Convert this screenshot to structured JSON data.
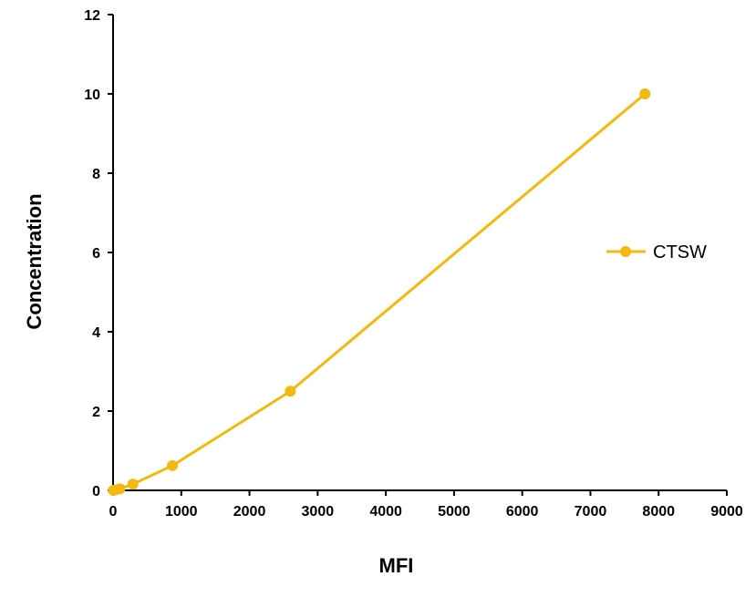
{
  "chart_data": {
    "type": "line",
    "xlabel": "MFI",
    "ylabel": "Concentration",
    "xlim": [
      0,
      9000
    ],
    "ylim": [
      0,
      12
    ],
    "xticks": [
      0,
      1000,
      2000,
      3000,
      4000,
      5000,
      6000,
      7000,
      8000,
      9000
    ],
    "yticks": [
      0,
      2,
      4,
      6,
      8,
      10,
      12
    ],
    "grid": false,
    "legend_position": "right",
    "colors": {
      "series": "#F2B90F"
    },
    "series": [
      {
        "name": "CTSW",
        "x": [
          5,
          35,
          100,
          290,
          870,
          2600,
          7800
        ],
        "y": [
          0,
          0.01,
          0.04,
          0.156,
          0.625,
          2.5,
          10
        ]
      }
    ]
  }
}
